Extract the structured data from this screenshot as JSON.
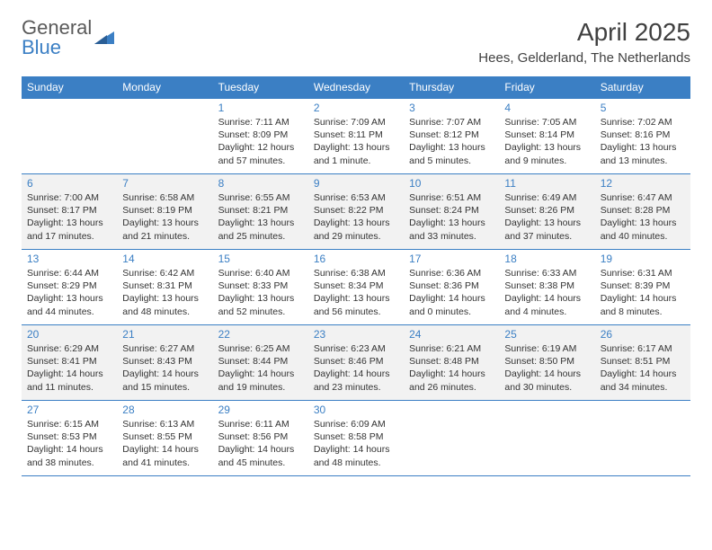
{
  "logo": {
    "line1": "General",
    "line2": "Blue"
  },
  "title": "April 2025",
  "location": "Hees, Gelderland, The Netherlands",
  "colors": {
    "headerBg": "#3b7fc4",
    "headerText": "#ffffff",
    "border": "#3b7fc4",
    "dayNum": "#3b7fc4",
    "bodyText": "#333333",
    "shaded": "#f2f2f2",
    "logoGray": "#5a5a5a"
  },
  "weekdays": [
    "Sunday",
    "Monday",
    "Tuesday",
    "Wednesday",
    "Thursday",
    "Friday",
    "Saturday"
  ],
  "shadedWeeks": [
    1,
    3
  ],
  "weeks": [
    [
      null,
      null,
      {
        "n": "1",
        "sr": "Sunrise: 7:11 AM",
        "ss": "Sunset: 8:09 PM",
        "dl": "Daylight: 12 hours and 57 minutes."
      },
      {
        "n": "2",
        "sr": "Sunrise: 7:09 AM",
        "ss": "Sunset: 8:11 PM",
        "dl": "Daylight: 13 hours and 1 minute."
      },
      {
        "n": "3",
        "sr": "Sunrise: 7:07 AM",
        "ss": "Sunset: 8:12 PM",
        "dl": "Daylight: 13 hours and 5 minutes."
      },
      {
        "n": "4",
        "sr": "Sunrise: 7:05 AM",
        "ss": "Sunset: 8:14 PM",
        "dl": "Daylight: 13 hours and 9 minutes."
      },
      {
        "n": "5",
        "sr": "Sunrise: 7:02 AM",
        "ss": "Sunset: 8:16 PM",
        "dl": "Daylight: 13 hours and 13 minutes."
      }
    ],
    [
      {
        "n": "6",
        "sr": "Sunrise: 7:00 AM",
        "ss": "Sunset: 8:17 PM",
        "dl": "Daylight: 13 hours and 17 minutes."
      },
      {
        "n": "7",
        "sr": "Sunrise: 6:58 AM",
        "ss": "Sunset: 8:19 PM",
        "dl": "Daylight: 13 hours and 21 minutes."
      },
      {
        "n": "8",
        "sr": "Sunrise: 6:55 AM",
        "ss": "Sunset: 8:21 PM",
        "dl": "Daylight: 13 hours and 25 minutes."
      },
      {
        "n": "9",
        "sr": "Sunrise: 6:53 AM",
        "ss": "Sunset: 8:22 PM",
        "dl": "Daylight: 13 hours and 29 minutes."
      },
      {
        "n": "10",
        "sr": "Sunrise: 6:51 AM",
        "ss": "Sunset: 8:24 PM",
        "dl": "Daylight: 13 hours and 33 minutes."
      },
      {
        "n": "11",
        "sr": "Sunrise: 6:49 AM",
        "ss": "Sunset: 8:26 PM",
        "dl": "Daylight: 13 hours and 37 minutes."
      },
      {
        "n": "12",
        "sr": "Sunrise: 6:47 AM",
        "ss": "Sunset: 8:28 PM",
        "dl": "Daylight: 13 hours and 40 minutes."
      }
    ],
    [
      {
        "n": "13",
        "sr": "Sunrise: 6:44 AM",
        "ss": "Sunset: 8:29 PM",
        "dl": "Daylight: 13 hours and 44 minutes."
      },
      {
        "n": "14",
        "sr": "Sunrise: 6:42 AM",
        "ss": "Sunset: 8:31 PM",
        "dl": "Daylight: 13 hours and 48 minutes."
      },
      {
        "n": "15",
        "sr": "Sunrise: 6:40 AM",
        "ss": "Sunset: 8:33 PM",
        "dl": "Daylight: 13 hours and 52 minutes."
      },
      {
        "n": "16",
        "sr": "Sunrise: 6:38 AM",
        "ss": "Sunset: 8:34 PM",
        "dl": "Daylight: 13 hours and 56 minutes."
      },
      {
        "n": "17",
        "sr": "Sunrise: 6:36 AM",
        "ss": "Sunset: 8:36 PM",
        "dl": "Daylight: 14 hours and 0 minutes."
      },
      {
        "n": "18",
        "sr": "Sunrise: 6:33 AM",
        "ss": "Sunset: 8:38 PM",
        "dl": "Daylight: 14 hours and 4 minutes."
      },
      {
        "n": "19",
        "sr": "Sunrise: 6:31 AM",
        "ss": "Sunset: 8:39 PM",
        "dl": "Daylight: 14 hours and 8 minutes."
      }
    ],
    [
      {
        "n": "20",
        "sr": "Sunrise: 6:29 AM",
        "ss": "Sunset: 8:41 PM",
        "dl": "Daylight: 14 hours and 11 minutes."
      },
      {
        "n": "21",
        "sr": "Sunrise: 6:27 AM",
        "ss": "Sunset: 8:43 PM",
        "dl": "Daylight: 14 hours and 15 minutes."
      },
      {
        "n": "22",
        "sr": "Sunrise: 6:25 AM",
        "ss": "Sunset: 8:44 PM",
        "dl": "Daylight: 14 hours and 19 minutes."
      },
      {
        "n": "23",
        "sr": "Sunrise: 6:23 AM",
        "ss": "Sunset: 8:46 PM",
        "dl": "Daylight: 14 hours and 23 minutes."
      },
      {
        "n": "24",
        "sr": "Sunrise: 6:21 AM",
        "ss": "Sunset: 8:48 PM",
        "dl": "Daylight: 14 hours and 26 minutes."
      },
      {
        "n": "25",
        "sr": "Sunrise: 6:19 AM",
        "ss": "Sunset: 8:50 PM",
        "dl": "Daylight: 14 hours and 30 minutes."
      },
      {
        "n": "26",
        "sr": "Sunrise: 6:17 AM",
        "ss": "Sunset: 8:51 PM",
        "dl": "Daylight: 14 hours and 34 minutes."
      }
    ],
    [
      {
        "n": "27",
        "sr": "Sunrise: 6:15 AM",
        "ss": "Sunset: 8:53 PM",
        "dl": "Daylight: 14 hours and 38 minutes."
      },
      {
        "n": "28",
        "sr": "Sunrise: 6:13 AM",
        "ss": "Sunset: 8:55 PM",
        "dl": "Daylight: 14 hours and 41 minutes."
      },
      {
        "n": "29",
        "sr": "Sunrise: 6:11 AM",
        "ss": "Sunset: 8:56 PM",
        "dl": "Daylight: 14 hours and 45 minutes."
      },
      {
        "n": "30",
        "sr": "Sunrise: 6:09 AM",
        "ss": "Sunset: 8:58 PM",
        "dl": "Daylight: 14 hours and 48 minutes."
      },
      null,
      null,
      null
    ]
  ]
}
